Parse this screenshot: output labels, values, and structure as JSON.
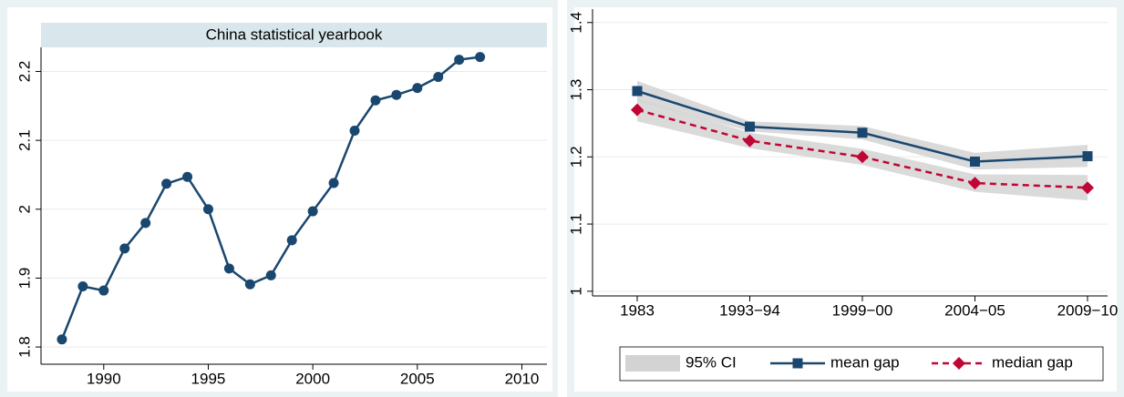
{
  "chart_data": [
    {
      "type": "line",
      "title": "China statistical yearbook",
      "x": [
        1988,
        1989,
        1990,
        1991,
        1992,
        1993,
        1994,
        1995,
        1996,
        1997,
        1998,
        1999,
        2000,
        2001,
        2002,
        2003,
        2004,
        2005,
        2006,
        2007,
        2008
      ],
      "values": [
        1.811,
        1.888,
        1.882,
        1.943,
        1.98,
        2.037,
        2.047,
        2.0,
        1.914,
        1.891,
        1.904,
        1.955,
        1.997,
        2.038,
        2.114,
        2.158,
        2.166,
        2.176,
        2.192,
        2.217,
        2.221
      ],
      "color": "#1a476f",
      "xlim": [
        1987,
        2011.2
      ],
      "xticks": [
        1990,
        1995,
        2000,
        2005,
        2010
      ],
      "ylim": [
        1.775,
        2.235
      ],
      "yticks": [
        1.8,
        1.9,
        2,
        2.1,
        2.2
      ],
      "grid": true
    },
    {
      "type": "line_ci",
      "categories": [
        "1983",
        "1993−94",
        "1999−00",
        "2004−05",
        "2009−10"
      ],
      "ci_name": "95% CI",
      "ci_color": "#d3d3d3",
      "series": [
        {
          "name": "mean gap",
          "color": "#1a476f",
          "marker": "square",
          "dash": false,
          "values": [
            1.298,
            1.245,
            1.236,
            1.193,
            1.201
          ],
          "lower": [
            1.283,
            1.238,
            1.226,
            1.181,
            1.185
          ],
          "upper": [
            1.313,
            1.253,
            1.246,
            1.206,
            1.218
          ]
        },
        {
          "name": "median gap",
          "color": "#c10534",
          "marker": "diamond",
          "dash": true,
          "values": [
            1.27,
            1.224,
            1.2,
            1.161,
            1.154
          ],
          "lower": [
            1.253,
            1.213,
            1.188,
            1.148,
            1.135
          ],
          "upper": [
            1.287,
            1.236,
            1.212,
            1.174,
            1.173
          ]
        }
      ],
      "ylim": [
        0.993,
        1.42
      ],
      "yticks": [
        1,
        1.1,
        1.2,
        1.3,
        1.4
      ],
      "grid": true,
      "legend": "bottom"
    }
  ]
}
